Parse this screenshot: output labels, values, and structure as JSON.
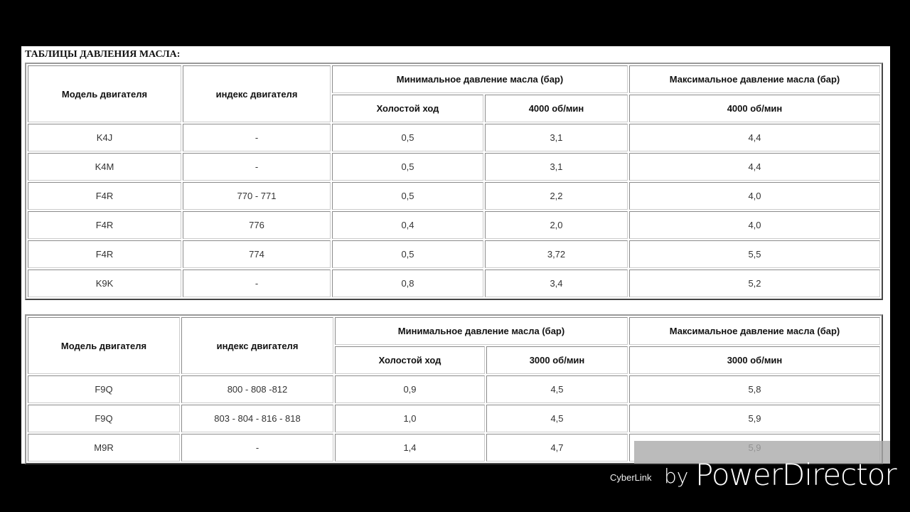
{
  "title": "ТАБЛИЦЫ ДАВЛЕНИЯ МАСЛА:",
  "table1": {
    "h_model": "Модель двигателя",
    "h_index": "индекс двигателя",
    "h_min": "Минимальное давление масла (бар)",
    "h_max": "Максимальное давление масла (бар)",
    "h_idle": "Холостой ход",
    "h_rpm_min": "4000 об/мин",
    "h_rpm_max": "4000 об/мин",
    "rows": [
      [
        "K4J",
        "-",
        "0,5",
        "3,1",
        "4,4"
      ],
      [
        "K4M",
        "-",
        "0,5",
        "3,1",
        "4,4"
      ],
      [
        "F4R",
        "770 - 771",
        "0,5",
        "2,2",
        "4,0"
      ],
      [
        "F4R",
        "776",
        "0,4",
        "2,0",
        "4,0"
      ],
      [
        "F4R",
        "774",
        "0,5",
        "3,72",
        "5,5"
      ],
      [
        "K9K",
        "-",
        "0,8",
        "3,4",
        "5,2"
      ]
    ]
  },
  "table2": {
    "h_model": "Модель двигателя",
    "h_index": "индекс двигателя",
    "h_min": "Минимальное давление масла (бар)",
    "h_max": "Максимальное давление масла (бар)",
    "h_idle": "Холостой ход",
    "h_rpm_min": "3000 об/мин",
    "h_rpm_max": "3000 об/мин",
    "rows": [
      [
        "F9Q",
        "800 - 808 -812",
        "0,9",
        "4,5",
        "5,8"
      ],
      [
        "F9Q",
        "803 - 804 - 816 - 818",
        "1,0",
        "4,5",
        "5,9"
      ],
      [
        "M9R",
        "-",
        "1,4",
        "4,7",
        "5,9"
      ]
    ]
  },
  "watermark": {
    "brand": "CyberLink",
    "by": "by",
    "product": "PowerDirector"
  }
}
